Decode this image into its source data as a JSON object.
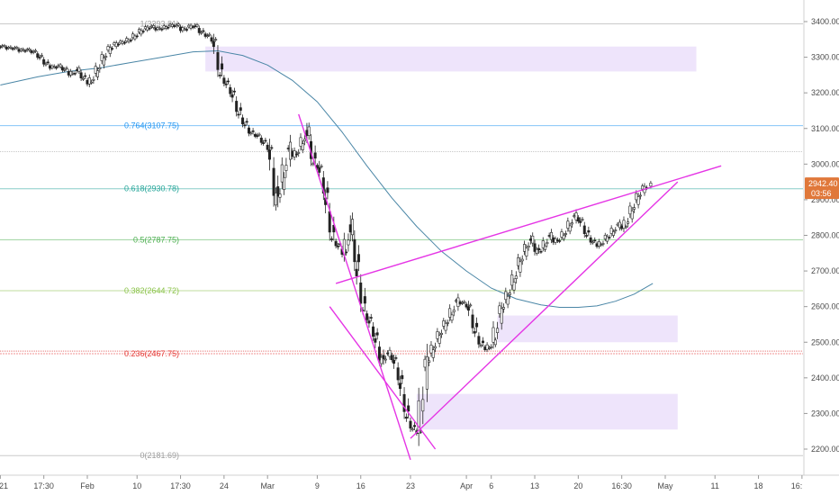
{
  "chart_data": {
    "type": "candlestick",
    "y_axis": {
      "position": "right",
      "range": [
        2150,
        3450
      ],
      "ticks": [
        3400,
        3300,
        3200,
        3100,
        3000,
        2900,
        2800,
        2700,
        2600,
        2500,
        2400,
        2300,
        2200
      ]
    },
    "x_axis": {
      "range": [
        -1,
        126
      ],
      "ticks": [
        {
          "label": "21",
          "x": -1
        },
        {
          "label": "17:30",
          "x": 6
        },
        {
          "label": "Feb",
          "x": 13
        },
        {
          "label": "10",
          "x": 21
        },
        {
          "label": "17:30",
          "x": 28
        },
        {
          "label": "24",
          "x": 35
        },
        {
          "label": "Mar",
          "x": 42
        },
        {
          "label": "9",
          "x": 50
        },
        {
          "label": "16",
          "x": 57
        },
        {
          "label": "23",
          "x": 65
        },
        {
          "label": "Apr",
          "x": 74
        },
        {
          "label": "6",
          "x": 78
        },
        {
          "label": "13",
          "x": 85
        },
        {
          "label": "20",
          "x": 92
        },
        {
          "label": "16:30",
          "x": 99
        },
        {
          "label": "May",
          "x": 106
        },
        {
          "label": "11",
          "x": 114
        },
        {
          "label": "18",
          "x": 121
        },
        {
          "label": "16:",
          "x": 128
        }
      ]
    },
    "fib_levels": [
      {
        "ratio": "1",
        "price": 3393.81,
        "label": "1(3393.81)",
        "color": "#9e9e9e"
      },
      {
        "ratio": "0.764",
        "price": 3107.75,
        "label": "0.764(3107.75)",
        "color": "#2196f3"
      },
      {
        "ratio": "0.618",
        "price": 2930.78,
        "label": "0.618(2930.78)",
        "color": "#26a69a"
      },
      {
        "ratio": "0.5",
        "price": 2787.75,
        "label": "0.5(2787.75)",
        "color": "#4caf50"
      },
      {
        "ratio": "0.382",
        "price": 2644.72,
        "label": "0.382(2644.72)",
        "color": "#8bc34a"
      },
      {
        "ratio": "0.236",
        "price": 2467.75,
        "label": "0.236(2467.75)",
        "color": "#e53935"
      },
      {
        "ratio": "0",
        "price": 2181.69,
        "label": "0(2181.69)",
        "color": "#9e9e9e"
      }
    ],
    "extra_levels": [
      3035,
      2475
    ],
    "zones": [
      {
        "x0": 32,
        "x1": 111,
        "y0": 3260,
        "y1": 3330
      },
      {
        "x0": 79,
        "x1": 108,
        "y0": 2500,
        "y1": 2575
      },
      {
        "x0": 66,
        "x1": 108,
        "y0": 2255,
        "y1": 2355
      }
    ],
    "trendlines": [
      {
        "x0": 47,
        "y0": 3140,
        "x1": 65,
        "y1": 2170
      },
      {
        "x0": 52,
        "y0": 2600,
        "x1": 69,
        "y1": 2200
      },
      {
        "x0": 53,
        "y0": 2665,
        "x1": 115,
        "y1": 2995
      },
      {
        "x0": 65,
        "y0": 2230,
        "x1": 108,
        "y1": 2950
      }
    ],
    "moving_average": [
      [
        -1,
        3222
      ],
      [
        5,
        3245
      ],
      [
        10,
        3260
      ],
      [
        15,
        3270
      ],
      [
        20,
        3285
      ],
      [
        25,
        3300
      ],
      [
        30,
        3315
      ],
      [
        34,
        3318
      ],
      [
        38,
        3305
      ],
      [
        42,
        3278
      ],
      [
        46,
        3235
      ],
      [
        50,
        3175
      ],
      [
        54,
        3090
      ],
      [
        58,
        2995
      ],
      [
        62,
        2905
      ],
      [
        66,
        2825
      ],
      [
        70,
        2755
      ],
      [
        74,
        2700
      ],
      [
        78,
        2652
      ],
      [
        82,
        2622
      ],
      [
        86,
        2605
      ],
      [
        89,
        2598
      ],
      [
        92,
        2598
      ],
      [
        95,
        2602
      ],
      [
        98,
        2615
      ],
      [
        101,
        2635
      ],
      [
        104,
        2665
      ]
    ],
    "candles": [
      [
        -1,
        3330
      ],
      [
        0,
        3325
      ],
      [
        1,
        3325
      ],
      [
        2,
        3318
      ],
      [
        3,
        3320
      ],
      [
        4,
        3315
      ],
      [
        5,
        3300
      ],
      [
        6,
        3280
      ],
      [
        7,
        3270
      ],
      [
        8,
        3275
      ],
      [
        9,
        3265
      ],
      [
        10,
        3250
      ],
      [
        11,
        3265
      ],
      [
        12,
        3240
      ],
      [
        13,
        3225
      ],
      [
        14,
        3255
      ],
      [
        15,
        3290
      ],
      [
        16,
        3320
      ],
      [
        17,
        3335
      ],
      [
        18,
        3340
      ],
      [
        19,
        3345
      ],
      [
        20,
        3355
      ],
      [
        21,
        3370
      ],
      [
        22,
        3380
      ],
      [
        23,
        3385
      ],
      [
        24,
        3378
      ],
      [
        25,
        3382
      ],
      [
        26,
        3388
      ],
      [
        27,
        3390
      ],
      [
        28,
        3375
      ],
      [
        29,
        3385
      ],
      [
        30,
        3388
      ],
      [
        31,
        3368
      ],
      [
        32,
        3360
      ],
      [
        33,
        3345
      ],
      [
        34,
        3250
      ],
      [
        35,
        3225
      ],
      [
        36,
        3195
      ],
      [
        37,
        3140
      ],
      [
        38,
        3110
      ],
      [
        39,
        3085
      ],
      [
        40,
        3080
      ],
      [
        41,
        3060
      ],
      [
        42,
        3040
      ],
      [
        43,
        2885
      ],
      [
        44,
        2950
      ],
      [
        45,
        3045
      ],
      [
        46,
        3020
      ],
      [
        47,
        3050
      ],
      [
        48,
        3095
      ],
      [
        49,
        3000
      ],
      [
        50,
        2990
      ],
      [
        51,
        2905
      ],
      [
        52,
        2790
      ],
      [
        53,
        2770
      ],
      [
        54,
        2745
      ],
      [
        55,
        2830
      ],
      [
        56,
        2705
      ],
      [
        57,
        2590
      ],
      [
        58,
        2560
      ],
      [
        59,
        2510
      ],
      [
        60,
        2440
      ],
      [
        61,
        2470
      ],
      [
        62,
        2450
      ],
      [
        63,
        2385
      ],
      [
        64,
        2290
      ],
      [
        65,
        2255
      ],
      [
        66,
        2245
      ],
      [
        67,
        2430
      ],
      [
        68,
        2470
      ],
      [
        69,
        2510
      ],
      [
        70,
        2545
      ],
      [
        71,
        2570
      ],
      [
        72,
        2615
      ],
      [
        73,
        2610
      ],
      [
        74,
        2600
      ],
      [
        75,
        2530
      ],
      [
        76,
        2490
      ],
      [
        77,
        2480
      ],
      [
        78,
        2500
      ],
      [
        79,
        2580
      ],
      [
        80,
        2620
      ],
      [
        81,
        2660
      ],
      [
        82,
        2715
      ],
      [
        83,
        2755
      ],
      [
        84,
        2790
      ],
      [
        85,
        2750
      ],
      [
        86,
        2765
      ],
      [
        87,
        2800
      ],
      [
        88,
        2780
      ],
      [
        89,
        2795
      ],
      [
        90,
        2820
      ],
      [
        91,
        2855
      ],
      [
        92,
        2840
      ],
      [
        93,
        2800
      ],
      [
        94,
        2780
      ],
      [
        95,
        2770
      ],
      [
        96,
        2790
      ],
      [
        97,
        2805
      ],
      [
        98,
        2830
      ],
      [
        99,
        2820
      ],
      [
        100,
        2860
      ],
      [
        101,
        2900
      ],
      [
        102,
        2930
      ],
      [
        103,
        2942
      ]
    ],
    "last_price": {
      "value": 2942.4,
      "label": "2942.40",
      "countdown": "03:56",
      "color": "#e0783a"
    }
  }
}
